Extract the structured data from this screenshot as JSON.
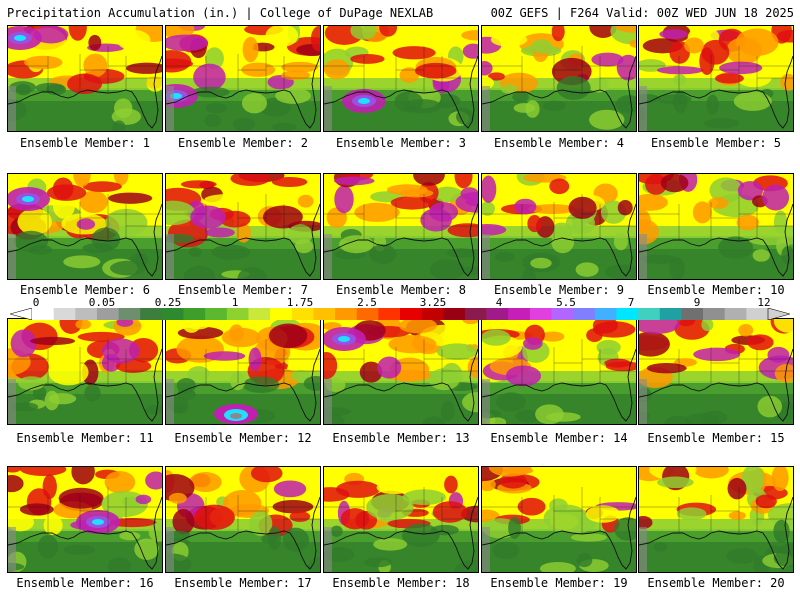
{
  "header": {
    "left": "Precipitation Accumulation (in.) | College of DuPage NEXLAB",
    "right": "00Z GEFS | F264 Valid: 00Z WED JUN 18 2025"
  },
  "colorbar": {
    "labels": [
      "0",
      "0.05",
      "0.25",
      "1",
      "1.75",
      "2.5",
      "3.25",
      "4",
      "5.5",
      "7",
      "9",
      "12"
    ],
    "colors": [
      "#ffffff",
      "#d9d9d9",
      "#bdbdbd",
      "#9e9e9e",
      "#6e8f6e",
      "#3d7d3d",
      "#2f8a2f",
      "#3f9d2a",
      "#5cb82e",
      "#8fd12f",
      "#c9e83a",
      "#ffff00",
      "#ffe000",
      "#ffc000",
      "#ff9900",
      "#ff6a00",
      "#ff3300",
      "#e60000",
      "#c20000",
      "#990012",
      "#8b1a4f",
      "#a01a8a",
      "#c61fb8",
      "#e040e0",
      "#b266ff",
      "#8080ff",
      "#40b0ff",
      "#00e6ff",
      "#40d0c0",
      "#20a0a0",
      "#707070",
      "#909090",
      "#b0b0b0",
      "#d0d0d0"
    ]
  },
  "members": [
    {
      "label": "Ensemble Member: 1"
    },
    {
      "label": "Ensemble Member: 2"
    },
    {
      "label": "Ensemble Member: 3"
    },
    {
      "label": "Ensemble Member: 4"
    },
    {
      "label": "Ensemble Member: 5"
    },
    {
      "label": "Ensemble Member: 6"
    },
    {
      "label": "Ensemble Member: 7"
    },
    {
      "label": "Ensemble Member: 8"
    },
    {
      "label": "Ensemble Member: 9"
    },
    {
      "label": "Ensemble Member: 10"
    },
    {
      "label": "Ensemble Member: 11"
    },
    {
      "label": "Ensemble Member: 12"
    },
    {
      "label": "Ensemble Member: 13"
    },
    {
      "label": "Ensemble Member: 14"
    },
    {
      "label": "Ensemble Member: 15"
    },
    {
      "label": "Ensemble Member: 16"
    },
    {
      "label": "Ensemble Member: 17"
    },
    {
      "label": "Ensemble Member: 18"
    },
    {
      "label": "Ensemble Member: 19"
    },
    {
      "label": "Ensemble Member: 20"
    }
  ],
  "palette": {
    "green_dark": "#2f7a2a",
    "green": "#4a9e2e",
    "green_light": "#8fcf32",
    "yellow": "#ffff00",
    "orange": "#ff9a00",
    "red": "#e01010",
    "dark_red": "#a00018",
    "magenta": "#c020b0",
    "violet": "#9a50e0",
    "cyan": "#20e0ff",
    "gray": "#8a8a8a",
    "coast": "#111111"
  }
}
